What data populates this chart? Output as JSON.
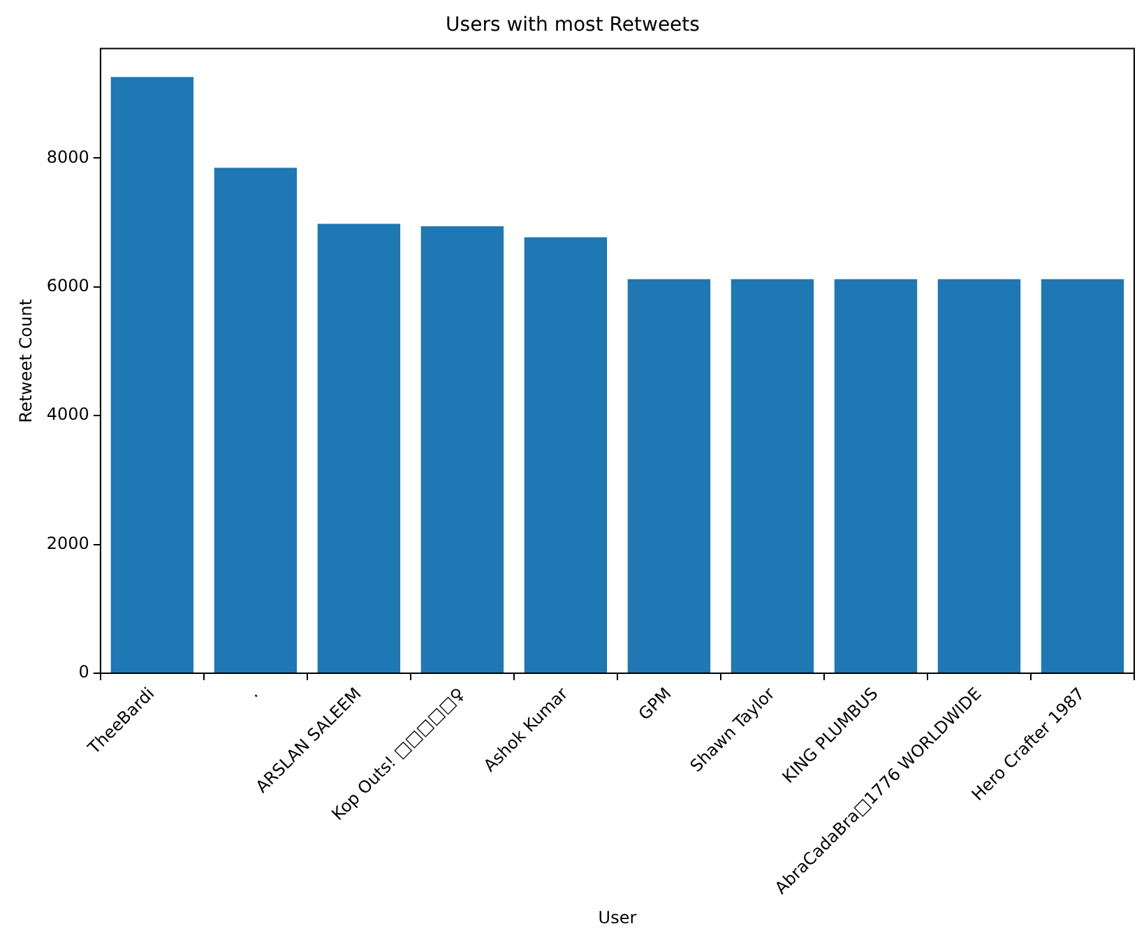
{
  "chart_data": {
    "type": "bar",
    "title": "Users with most Retweets",
    "xlabel": "User",
    "ylabel": "Retweet Count",
    "categories": [
      "TheeBardi",
      ".",
      "ARSLAN SALEEM",
      "Kop Outs! □□□□□♀",
      "Ashok Kumar",
      "GPM",
      "Shawn Taylor",
      "KING PLUMBUS",
      "AbraCadaBra□1776 WORLDWIDE",
      "Hero Crafter 1987"
    ],
    "values": [
      9260,
      7850,
      6980,
      6940,
      6770,
      6120,
      6120,
      6120,
      6120,
      6120
    ],
    "color": "#1f77b4",
    "ylim": [
      0,
      9700
    ],
    "yticks": [
      0,
      2000,
      4000,
      6000,
      8000
    ],
    "grid": false,
    "legend": false
  }
}
